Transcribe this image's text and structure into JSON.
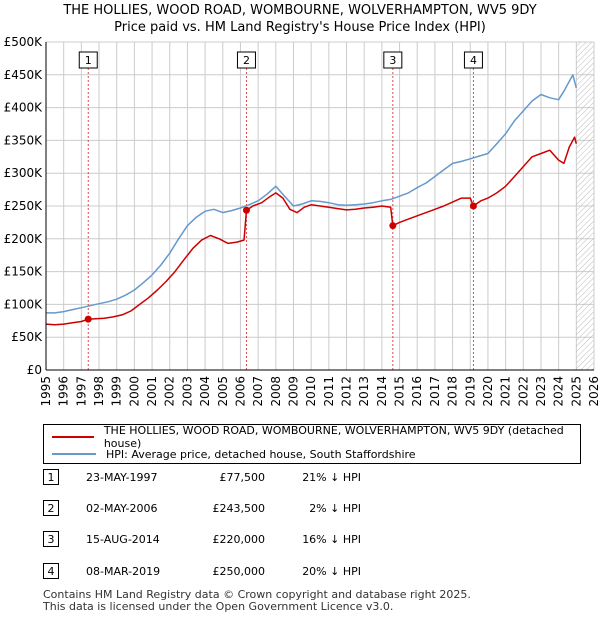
{
  "title": "THE HOLLIES, WOOD ROAD, WOMBOURNE, WOLVERHAMPTON, WV5 9DY",
  "subtitle": "Price paid vs. HM Land Registry's House Price Index (HPI)",
  "colors": {
    "property": "#cc0000",
    "hpi": "#6699cc",
    "grid": "#cccccc",
    "marker_line": "#cc0000"
  },
  "chart_data": {
    "type": "line",
    "title": "THE HOLLIES, WOOD ROAD, WOMBOURNE, WOLVERHAMPTON, WV5 9DY",
    "subtitle": "Price paid vs. HM Land Registry's House Price Index (HPI)",
    "xlim": [
      1995,
      2026
    ],
    "ylim": [
      0,
      500000
    ],
    "x_ticks": [
      1995,
      1996,
      1997,
      1998,
      1999,
      2000,
      2001,
      2002,
      2003,
      2004,
      2005,
      2006,
      2007,
      2008,
      2009,
      2010,
      2011,
      2012,
      2013,
      2014,
      2015,
      2016,
      2017,
      2018,
      2019,
      2020,
      2021,
      2022,
      2023,
      2024,
      2025,
      2026
    ],
    "y_ticks": [
      0,
      50000,
      100000,
      150000,
      200000,
      250000,
      300000,
      350000,
      400000,
      450000,
      500000
    ],
    "y_tick_labels": [
      "£0",
      "£50K",
      "£100K",
      "£150K",
      "£200K",
      "£250K",
      "£300K",
      "£350K",
      "£400K",
      "£450K",
      "£500K"
    ],
    "grid": true,
    "hatched_from": 2025.0,
    "series": [
      {
        "name": "THE HOLLIES, WOOD ROAD, WOMBOURNE, WOLVERHAMPTON, WV5 9DY (detached house)",
        "x": [
          1995.0,
          1995.5,
          1996.0,
          1996.5,
          1997.0,
          1997.39,
          1997.8,
          1998.3,
          1998.8,
          1999.3,
          1999.8,
          2000.3,
          2000.8,
          2001.3,
          2001.8,
          2002.3,
          2002.8,
          2003.3,
          2003.8,
          2004.3,
          2004.8,
          2005.3,
          2005.8,
          2006.2,
          2006.34,
          2006.7,
          2007.2,
          2007.7,
          2008.0,
          2008.4,
          2008.8,
          2009.2,
          2009.6,
          2010.0,
          2010.5,
          2011.0,
          2011.5,
          2012.0,
          2012.5,
          2013.0,
          2013.5,
          2014.0,
          2014.5,
          2014.62,
          2015.0,
          2015.5,
          2016.0,
          2016.5,
          2017.0,
          2017.5,
          2018.0,
          2018.5,
          2019.0,
          2019.18,
          2019.6,
          2020.0,
          2020.5,
          2021.0,
          2021.5,
          2022.0,
          2022.5,
          2023.0,
          2023.5,
          2024.0,
          2024.3,
          2024.6,
          2024.9,
          2025.0
        ],
        "values": [
          70000,
          69000,
          70000,
          72000,
          74000,
          77500,
          78000,
          79000,
          81000,
          84000,
          90000,
          100000,
          110000,
          122000,
          135000,
          150000,
          168000,
          185000,
          198000,
          205000,
          200000,
          193000,
          195000,
          198000,
          243500,
          250000,
          255000,
          265000,
          270000,
          262000,
          245000,
          240000,
          248000,
          252000,
          250000,
          248000,
          246000,
          244000,
          245000,
          247000,
          248000,
          250000,
          248000,
          220000,
          225000,
          230000,
          235000,
          240000,
          245000,
          250000,
          256000,
          262000,
          262000,
          250000,
          258000,
          262000,
          270000,
          280000,
          295000,
          310000,
          325000,
          330000,
          335000,
          320000,
          315000,
          340000,
          355000,
          345000
        ]
      },
      {
        "name": "HPI: Average price, detached house, South Staffordshire",
        "x": [
          1995.0,
          1995.5,
          1996.0,
          1996.5,
          1997.0,
          1997.5,
          1998.0,
          1998.5,
          1999.0,
          1999.5,
          2000.0,
          2000.5,
          2001.0,
          2001.5,
          2002.0,
          2002.5,
          2003.0,
          2003.5,
          2004.0,
          2004.5,
          2005.0,
          2005.5,
          2006.0,
          2006.5,
          2007.0,
          2007.5,
          2008.0,
          2008.5,
          2009.0,
          2009.5,
          2010.0,
          2010.5,
          2011.0,
          2011.5,
          2012.0,
          2012.5,
          2013.0,
          2013.5,
          2014.0,
          2014.5,
          2015.0,
          2015.5,
          2016.0,
          2016.5,
          2017.0,
          2017.5,
          2018.0,
          2018.5,
          2019.0,
          2019.5,
          2020.0,
          2020.5,
          2021.0,
          2021.5,
          2022.0,
          2022.5,
          2023.0,
          2023.5,
          2024.0,
          2024.3,
          2024.6,
          2024.8,
          2025.0
        ],
        "values": [
          87000,
          87000,
          89000,
          92000,
          95000,
          98000,
          101000,
          104000,
          108000,
          114000,
          122000,
          133000,
          145000,
          160000,
          178000,
          200000,
          220000,
          233000,
          242000,
          245000,
          240000,
          243000,
          247000,
          252000,
          258000,
          268000,
          280000,
          265000,
          250000,
          253000,
          258000,
          257000,
          255000,
          252000,
          251000,
          252000,
          253000,
          255000,
          258000,
          260000,
          265000,
          270000,
          278000,
          285000,
          295000,
          305000,
          315000,
          318000,
          322000,
          326000,
          330000,
          345000,
          360000,
          380000,
          395000,
          410000,
          420000,
          415000,
          412000,
          425000,
          440000,
          450000,
          430000
        ]
      }
    ],
    "sales": [
      {
        "n": "1",
        "x": 1997.39,
        "value": 77500
      },
      {
        "n": "2",
        "x": 2006.34,
        "value": 243500
      },
      {
        "n": "3",
        "x": 2014.62,
        "value": 220000
      },
      {
        "n": "4",
        "x": 2019.18,
        "value": 250000
      }
    ]
  },
  "legend": {
    "property": "THE HOLLIES, WOOD ROAD, WOMBOURNE, WOLVERHAMPTON, WV5 9DY (detached house)",
    "hpi": "HPI: Average price, detached house, South Staffordshire"
  },
  "sales_table": [
    {
      "num": "1",
      "date": "23-MAY-1997",
      "price": "£77,500",
      "hpi": "21% ↓ HPI"
    },
    {
      "num": "2",
      "date": "02-MAY-2006",
      "price": "£243,500",
      "hpi": "2% ↓ HPI"
    },
    {
      "num": "3",
      "date": "15-AUG-2014",
      "price": "£220,000",
      "hpi": "16% ↓ HPI"
    },
    {
      "num": "4",
      "date": "08-MAR-2019",
      "price": "£250,000",
      "hpi": "20% ↓ HPI"
    }
  ],
  "footer": {
    "line1": "Contains HM Land Registry data © Crown copyright and database right 2025.",
    "line2": "This data is licensed under the Open Government Licence v3.0."
  }
}
